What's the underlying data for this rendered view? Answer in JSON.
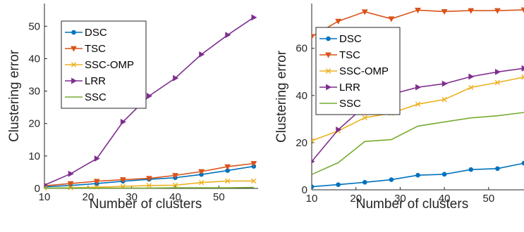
{
  "chart_data": [
    {
      "type": "line",
      "xlabel": "Number of clusters",
      "ylabel": "Clustering error",
      "xlim": [
        10,
        59
      ],
      "ylim": [
        0,
        57
      ],
      "xticks": [
        10,
        20,
        30,
        40,
        50
      ],
      "yticks": [
        0,
        10,
        20,
        30,
        40,
        50
      ],
      "grid": false,
      "legend_position": "upper-left",
      "x": [
        10,
        16,
        22,
        28,
        34,
        40,
        46,
        52,
        58
      ],
      "series": [
        {
          "name": "DSC",
          "color": "#0072BD",
          "marker": "circle",
          "values": [
            0.5,
            0.9,
            1.5,
            2.2,
            2.8,
            3.3,
            4.3,
            5.5,
            6.8
          ]
        },
        {
          "name": "TSC",
          "color": "#D95319",
          "marker": "triangle-down",
          "values": [
            0.8,
            1.5,
            2.2,
            2.7,
            3.1,
            4.0,
            5.2,
            6.7,
            7.7
          ]
        },
        {
          "name": "SSC-OMP",
          "color": "#EDB120",
          "marker": "x",
          "values": [
            0.1,
            0.2,
            0.4,
            0.6,
            0.9,
            1.0,
            1.8,
            2.3,
            2.3
          ]
        },
        {
          "name": "LRR",
          "color": "#7E2F8E",
          "marker": "triangle-right",
          "values": [
            1.0,
            4.5,
            9.2,
            20.5,
            28.5,
            34.0,
            41.3,
            47.3,
            52.7
          ]
        },
        {
          "name": "SSC",
          "color": "#77AC30",
          "marker": "none",
          "values": [
            0.1,
            0.1,
            0.1,
            0.1,
            0.1,
            0.2,
            0.2,
            0.2,
            0.3
          ]
        }
      ]
    },
    {
      "type": "line",
      "xlabel": "Number of clusters",
      "ylabel": "Clustering error",
      "xlim": [
        10,
        58
      ],
      "ylim": [
        0,
        79
      ],
      "xticks": [
        10,
        20,
        30,
        40,
        50
      ],
      "yticks": [
        0,
        20,
        40,
        60
      ],
      "grid": false,
      "legend_position": "upper-left",
      "x": [
        10,
        16,
        22,
        28,
        34,
        40,
        46,
        52,
        58
      ],
      "series": [
        {
          "name": "DSC",
          "color": "#0072BD",
          "marker": "circle",
          "values": [
            1.3,
            2.2,
            3.2,
            4.3,
            6.2,
            6.6,
            8.6,
            9.0,
            11.3
          ]
        },
        {
          "name": "TSC",
          "color": "#D95319",
          "marker": "triangle-down",
          "values": [
            65.0,
            71.5,
            75.5,
            72.5,
            76.2,
            75.6,
            76.0,
            76.0,
            76.3
          ]
        },
        {
          "name": "SSC-OMP",
          "color": "#EDB120",
          "marker": "x",
          "values": [
            20.8,
            25.0,
            30.6,
            32.5,
            36.3,
            38.3,
            43.4,
            45.5,
            47.8
          ]
        },
        {
          "name": "LRR",
          "color": "#7E2F8E",
          "marker": "triangle-right",
          "values": [
            12.0,
            25.5,
            35.5,
            40.5,
            43.5,
            45.0,
            48.0,
            50.0,
            51.5
          ]
        },
        {
          "name": "SSC",
          "color": "#77AC30",
          "marker": "none",
          "values": [
            6.5,
            11.5,
            20.5,
            21.3,
            27.0,
            28.8,
            30.5,
            31.4,
            32.8
          ]
        }
      ]
    }
  ]
}
